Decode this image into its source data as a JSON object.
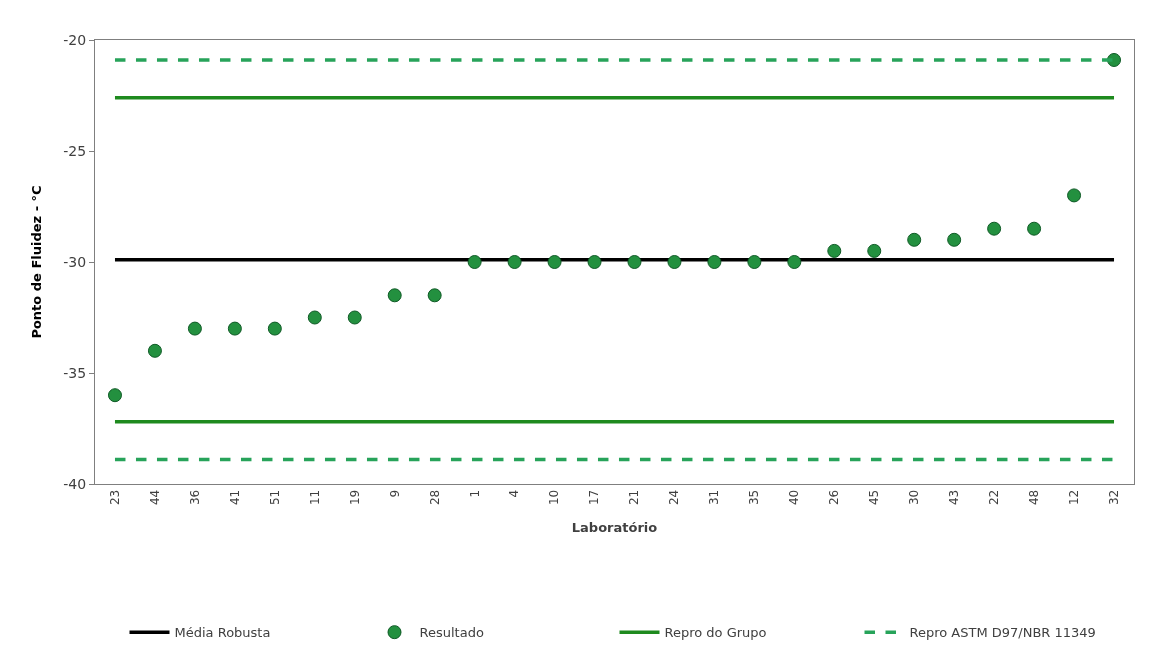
{
  "chart_data": {
    "type": "scatter",
    "xlabel": "Laboratório",
    "ylabel": "Ponto de Fluidez - °C",
    "categories": [
      "23",
      "44",
      "36",
      "41",
      "51",
      "11",
      "19",
      "9",
      "28",
      "1",
      "4",
      "10",
      "17",
      "21",
      "24",
      "31",
      "35",
      "40",
      "26",
      "45",
      "30",
      "43",
      "22",
      "48",
      "12",
      "32"
    ],
    "series": [
      {
        "name": "Média Robusta",
        "type": "line",
        "color": "#000000",
        "line_style": "solid",
        "marker": "none",
        "values": [
          -29.9,
          -29.9,
          -29.9,
          -29.9,
          -29.9,
          -29.9,
          -29.9,
          -29.9,
          -29.9,
          -29.9,
          -29.9,
          -29.9,
          -29.9,
          -29.9,
          -29.9,
          -29.9,
          -29.9,
          -29.9,
          -29.9,
          -29.9,
          -29.9,
          -29.9,
          -29.9,
          -29.9,
          -29.9,
          -29.9
        ]
      },
      {
        "name": "Resultado",
        "color": "#23903f",
        "marker": "circle",
        "values": [
          -36,
          -34,
          -33,
          -33,
          -33,
          -32.5,
          -32.5,
          -31.5,
          -31.5,
          -30,
          -30,
          -30,
          -30,
          -30,
          -30,
          -30,
          -30,
          -30,
          -29.5,
          -29.5,
          -29,
          -29,
          -28.5,
          -28.5,
          -27,
          -20.9
        ]
      },
      {
        "name": "Repro do Grupo",
        "type": "line",
        "color": "#1e8a1e",
        "line_style": "solid",
        "marker": "none",
        "values": [
          -22.6,
          -22.6,
          -22.6,
          -22.6,
          -22.6,
          -22.6,
          -22.6,
          -22.6,
          -22.6,
          -22.6,
          -22.6,
          -22.6,
          -22.6,
          -22.6,
          -22.6,
          -22.6,
          -22.6,
          -22.6,
          -22.6,
          -22.6,
          -22.6,
          -22.6,
          -22.6,
          -22.6,
          -22.6,
          -22.6
        ]
      },
      {
        "type": "line",
        "color": "#1e8a1e",
        "line_style": "solid",
        "marker": "none",
        "values": [
          -37.2,
          -37.2,
          -37.2,
          -37.2,
          -37.2,
          -37.2,
          -37.2,
          -37.2,
          -37.2,
          -37.2,
          -37.2,
          -37.2,
          -37.2,
          -37.2,
          -37.2,
          -37.2,
          -37.2,
          -37.2,
          -37.2,
          -37.2,
          -37.2,
          -37.2,
          -37.2,
          -37.2,
          -37.2,
          -37.2
        ]
      },
      {
        "name": "Repro ASTM D97/NBR 11349",
        "type": "line",
        "color": "#27a35a",
        "line_style": "dashed",
        "marker": "none",
        "values": [
          -20.9,
          -20.9,
          -20.9,
          -20.9,
          -20.9,
          -20.9,
          -20.9,
          -20.9,
          -20.9,
          -20.9,
          -20.9,
          -20.9,
          -20.9,
          -20.9,
          -20.9,
          -20.9,
          -20.9,
          -20.9,
          -20.9,
          -20.9,
          -20.9,
          -20.9,
          -20.9,
          -20.9,
          -20.9,
          -20.9
        ]
      },
      {
        "type": "line",
        "color": "#27a35a",
        "line_style": "dashed",
        "marker": "none",
        "values": [
          -38.9,
          -38.9,
          -38.9,
          -38.9,
          -38.9,
          -38.9,
          -38.9,
          -38.9,
          -38.9,
          -38.9,
          -38.9,
          -38.9,
          -38.9,
          -38.9,
          -38.9,
          -38.9,
          -38.9,
          -38.9,
          -38.9,
          -38.9,
          -38.9,
          -38.9,
          -38.9,
          -38.9,
          -38.9,
          -38.9
        ]
      }
    ],
    "ylim": [
      -40,
      -20
    ],
    "yticks": [
      -40,
      -35,
      -30,
      -25,
      -20
    ],
    "grid": false,
    "legend": "bottom"
  }
}
